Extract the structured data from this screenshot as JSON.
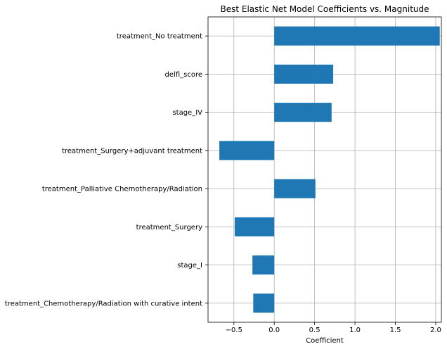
{
  "chart_data": {
    "type": "bar",
    "orientation": "horizontal",
    "title": "Best Elastic Net Model Coefficients vs. Magnitude",
    "xlabel": "Coefficient",
    "ylabel": "",
    "xlim": [
      -0.82,
      2.07
    ],
    "xticks": [
      -0.5,
      0.0,
      0.5,
      1.0,
      1.5,
      2.0
    ],
    "xtick_labels": [
      "−0.5",
      "0.0",
      "0.5",
      "1.0",
      "1.5",
      "2.0"
    ],
    "grid": true,
    "bar_color": "#1f77b4",
    "categories": [
      "treatment_No treatment",
      "delfi_score",
      "stage_IV",
      "treatment_Surgery+adjuvant treatment",
      "treatment_Palliative Chemotherapy/Radiation",
      "treatment_Surgery",
      "stage_I",
      "treatment_Chemotherapy/Radiation with curative intent"
    ],
    "values": [
      2.05,
      0.73,
      0.71,
      -0.68,
      0.51,
      -0.49,
      -0.27,
      -0.26
    ]
  }
}
